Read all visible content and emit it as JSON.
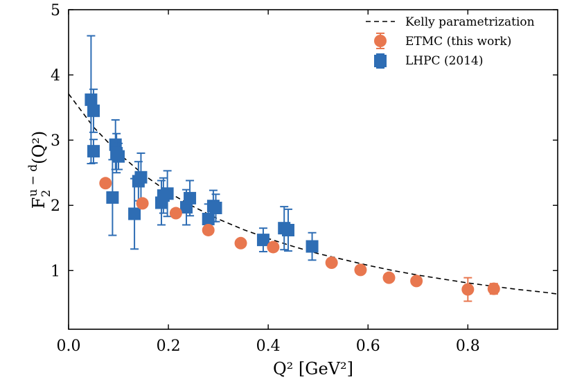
{
  "chart_data": {
    "type": "scatter",
    "title": "",
    "xlabel": "Q² [GeV²]",
    "ylabel_main": "F",
    "ylabel_sub": "2",
    "ylabel_sup": "u − d",
    "ylabel_tail": "(Q²)",
    "xlim": [
      0.0,
      0.98
    ],
    "ylim": [
      0.1,
      5.0
    ],
    "xticks": [
      0.0,
      0.2,
      0.4,
      0.6,
      0.8
    ],
    "xtick_labels": [
      "0.0",
      "0.2",
      "0.4",
      "0.6",
      "0.8"
    ],
    "yticks": [
      1,
      2,
      3,
      4,
      5
    ],
    "ytick_labels": [
      "1",
      "2",
      "3",
      "4",
      "5"
    ],
    "grid": false,
    "legend_position": "top-right",
    "colors": {
      "etmc": "#E8774F",
      "lhpc": "#2E6DB4",
      "curve": "#000000"
    },
    "series": [
      {
        "name": "Kelly parametrization",
        "kind": "curve",
        "x": [
          0.0,
          0.05,
          0.1,
          0.15,
          0.2,
          0.25,
          0.3,
          0.35,
          0.4,
          0.45,
          0.5,
          0.55,
          0.6,
          0.65,
          0.7,
          0.75,
          0.8,
          0.85,
          0.9,
          0.95,
          0.98
        ],
        "y": [
          3.71,
          3.2,
          2.8,
          2.47,
          2.2,
          1.98,
          1.79,
          1.63,
          1.49,
          1.37,
          1.26,
          1.17,
          1.08,
          1.0,
          0.93,
          0.87,
          0.81,
          0.76,
          0.71,
          0.67,
          0.64
        ]
      },
      {
        "name": "ETMC (this work)",
        "kind": "circle",
        "x": [
          0.074,
          0.148,
          0.215,
          0.28,
          0.345,
          0.41,
          0.527,
          0.585,
          0.642,
          0.697,
          0.8,
          0.852
        ],
        "y": [
          2.34,
          2.03,
          1.88,
          1.62,
          1.42,
          1.36,
          1.12,
          1.01,
          0.89,
          0.84,
          0.71,
          0.72
        ],
        "err": [
          0.06,
          0.05,
          0.05,
          0.04,
          0.04,
          0.04,
          0.04,
          0.04,
          0.04,
          0.04,
          0.18,
          0.08
        ]
      },
      {
        "name": "LHPC (2014)",
        "kind": "square",
        "x": [
          0.045,
          0.05,
          0.05,
          0.088,
          0.094,
          0.1,
          0.096,
          0.132,
          0.14,
          0.145,
          0.186,
          0.19,
          0.198,
          0.236,
          0.243,
          0.28,
          0.29,
          0.295,
          0.39,
          0.432,
          0.44,
          0.488
        ],
        "y": [
          3.62,
          3.45,
          2.83,
          2.12,
          2.93,
          2.75,
          2.8,
          1.87,
          2.37,
          2.43,
          2.04,
          2.15,
          2.18,
          1.97,
          2.11,
          1.79,
          1.99,
          1.96,
          1.47,
          1.65,
          1.62,
          1.37
        ],
        "err": [
          0.98,
          0.33,
          0.18,
          0.58,
          0.38,
          0.2,
          0.3,
          0.54,
          0.3,
          0.37,
          0.34,
          0.27,
          0.35,
          0.27,
          0.27,
          0.23,
          0.24,
          0.21,
          0.18,
          0.33,
          0.32,
          0.21
        ]
      }
    ]
  }
}
